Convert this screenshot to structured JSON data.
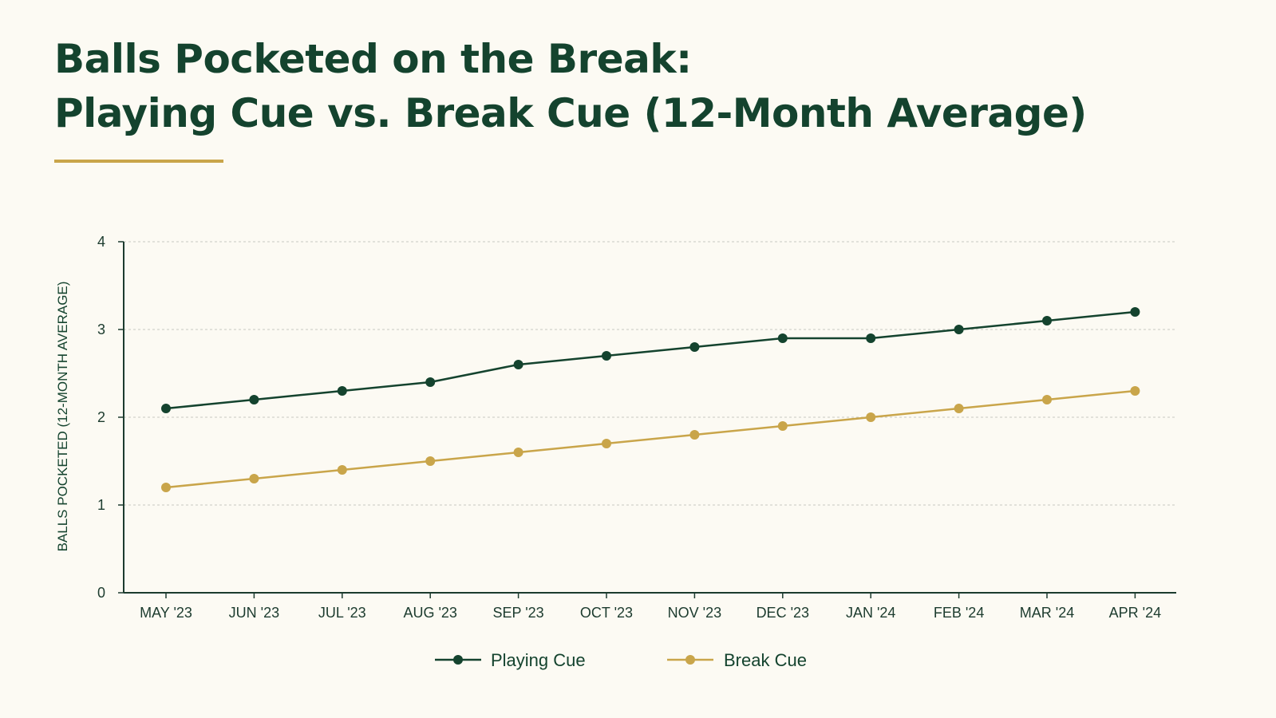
{
  "header": {
    "title_line1": "Balls Pocketed on the Break:",
    "title_line2": "Playing Cue vs. Break Cue (12-Month Average)"
  },
  "colors": {
    "background": "#fcfaf3",
    "title": "#14432e",
    "accent_rule": "#c9a54a",
    "axis": "#1c3b2e",
    "grid": "#c8c8c0"
  },
  "chart_data": {
    "type": "line",
    "title": "Balls Pocketed on the Break: Playing Cue vs. Break Cue (12-Month Average)",
    "xlabel": "",
    "ylabel": "BALLS POCKETED (12-MONTH AVERAGE)",
    "categories": [
      "MAY '23",
      "JUN '23",
      "JUL '23",
      "AUG '23",
      "SEP '23",
      "OCT '23",
      "NOV '23",
      "DEC '23",
      "JAN '24",
      "FEB '24",
      "MAR '24",
      "APR '24"
    ],
    "ylim": [
      0,
      4
    ],
    "yticks": [
      0,
      1,
      2,
      3,
      4
    ],
    "grid": true,
    "legend_position": "bottom",
    "series": [
      {
        "name": "Playing Cue",
        "color": "#14432e",
        "values": [
          2.1,
          2.2,
          2.3,
          2.4,
          2.6,
          2.7,
          2.8,
          2.9,
          2.9,
          3.0,
          3.1,
          3.2
        ]
      },
      {
        "name": "Break Cue",
        "color": "#c9a54a",
        "values": [
          1.2,
          1.3,
          1.4,
          1.5,
          1.6,
          1.7,
          1.8,
          1.9,
          2.0,
          2.1,
          2.2,
          2.3
        ]
      }
    ]
  }
}
